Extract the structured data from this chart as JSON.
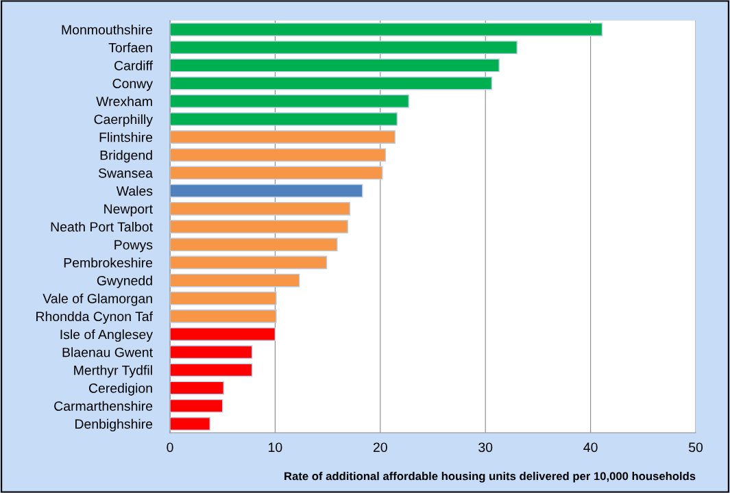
{
  "chart_data": {
    "type": "bar",
    "orientation": "horizontal",
    "xlabel": "Rate of additional affordable housing units delivered per 10,000 households",
    "categories": [
      "Monmouthshire",
      "Torfaen",
      "Cardiff",
      "Conwy",
      "Wrexham",
      "Caerphilly",
      "Flintshire",
      "Bridgend",
      "Swansea",
      "Wales",
      "Newport",
      "Neath Port Talbot",
      "Powys",
      "Pembrokeshire",
      "Gwynedd",
      "Vale of Glamorgan",
      "Rhondda Cynon Taf",
      "Isle of Anglesey",
      "Blaenau Gwent",
      "Merthyr Tydfil",
      "Ceredigion",
      "Carmarthenshire",
      "Denbighshire"
    ],
    "values": [
      41.1,
      33.0,
      31.3,
      30.6,
      22.7,
      21.6,
      21.4,
      20.5,
      20.2,
      18.3,
      17.1,
      16.9,
      15.9,
      14.9,
      12.3,
      10.1,
      10.1,
      10.0,
      7.8,
      7.8,
      5.1,
      5.0,
      3.8
    ],
    "colors": [
      "#00b050",
      "#00b050",
      "#00b050",
      "#00b050",
      "#00b050",
      "#00b050",
      "#f79646",
      "#f79646",
      "#f79646",
      "#4f81bd",
      "#f79646",
      "#f79646",
      "#f79646",
      "#f79646",
      "#f79646",
      "#f79646",
      "#f79646",
      "#ff0000",
      "#ff0000",
      "#ff0000",
      "#ff0000",
      "#ff0000",
      "#ff0000"
    ],
    "xlim": [
      0,
      50
    ],
    "xticks": [
      0,
      10,
      20,
      30,
      40,
      50
    ],
    "grid": "x",
    "legend": false
  }
}
